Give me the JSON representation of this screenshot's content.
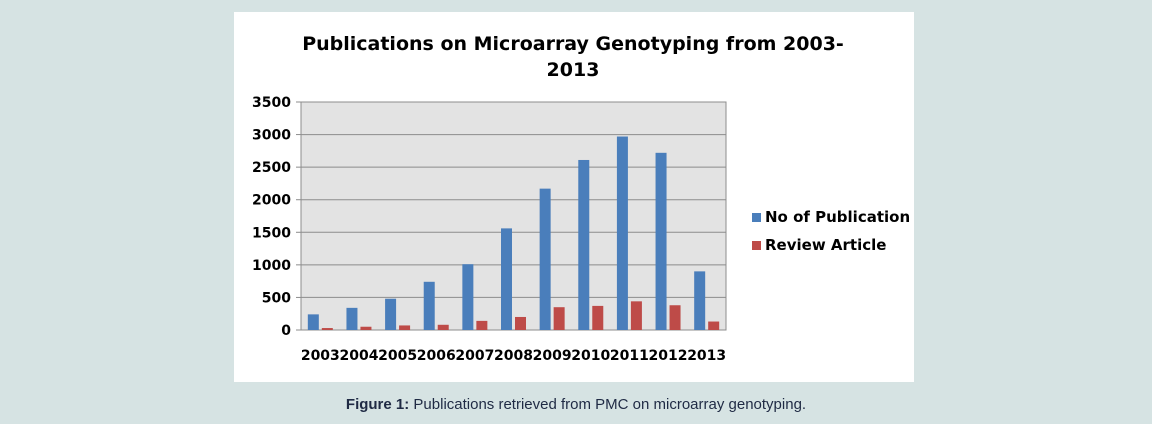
{
  "caption": {
    "label": "Figure 1:",
    "text": " Publications retrieved from PMC on microarray genotyping."
  },
  "chart_data": {
    "type": "bar",
    "title_lines": [
      "Publications on Microarray Genotyping from 2003-",
      "2013"
    ],
    "categories": [
      "2003",
      "2004",
      "2005",
      "2006",
      "2007",
      "2008",
      "2009",
      "2010",
      "2011",
      "2012",
      "2013"
    ],
    "series": [
      {
        "name": "No of Publication",
        "color": "#4a7ebb",
        "values": [
          240,
          340,
          480,
          740,
          1010,
          1560,
          2170,
          2610,
          2970,
          2720,
          900
        ]
      },
      {
        "name": "Review Article",
        "color": "#be4b48",
        "values": [
          30,
          50,
          70,
          80,
          140,
          200,
          350,
          370,
          440,
          380,
          130
        ]
      }
    ],
    "ylim": [
      0,
      3500
    ],
    "yticks": [
      0,
      500,
      1000,
      1500,
      2000,
      2500,
      3000,
      3500
    ],
    "grid": true,
    "legend_position": "right",
    "xlabel": "",
    "ylabel": ""
  }
}
